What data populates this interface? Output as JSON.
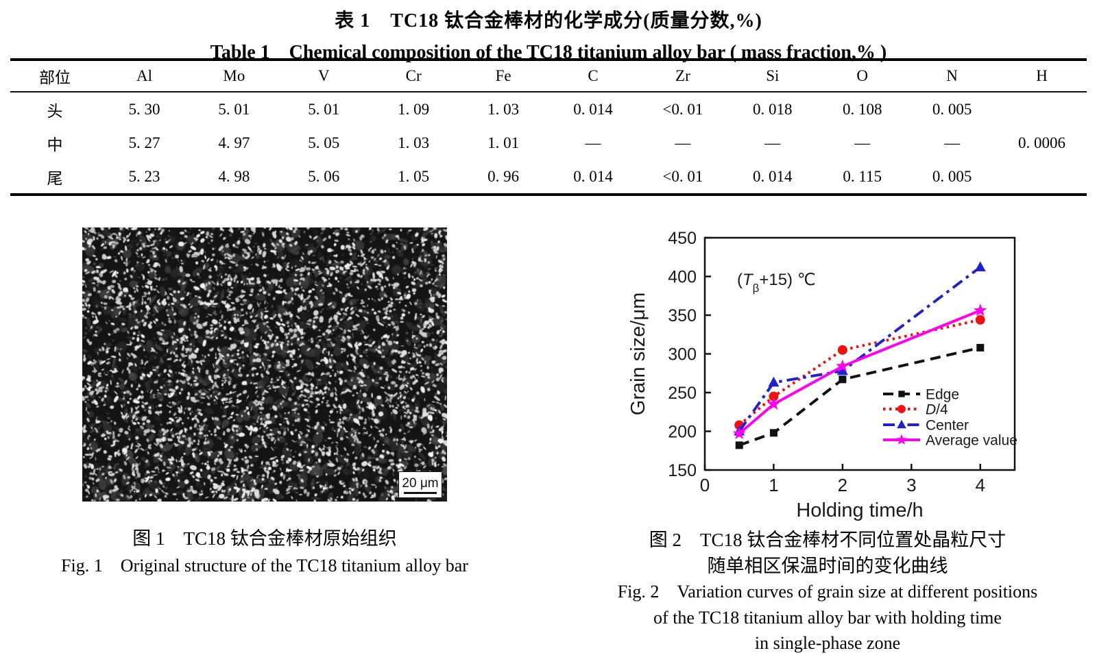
{
  "titles": {
    "table_zh": "表 1　TC18 钛合金棒材的化学成分(质量分数,%)",
    "table_en": "Table 1　Chemical composition of the TC18 titanium alloy bar ( mass fraction,% )"
  },
  "table": {
    "columns": [
      "部位",
      "Al",
      "Mo",
      "V",
      "Cr",
      "Fe",
      "C",
      "Zr",
      "Si",
      "O",
      "N",
      "H"
    ],
    "rows": [
      [
        "头",
        "5. 30",
        "5. 01",
        "5. 01",
        "1. 09",
        "1. 03",
        "0. 014",
        "<0. 01",
        "0. 018",
        "0. 108",
        "0. 005",
        ""
      ],
      [
        "中",
        "5. 27",
        "4. 97",
        "5. 05",
        "1. 03",
        "1. 01",
        "—",
        "—",
        "—",
        "—",
        "—",
        "0. 0006"
      ],
      [
        "尾",
        "5. 23",
        "4. 98",
        "5. 06",
        "1. 05",
        "0. 96",
        "0. 014",
        "<0. 01",
        "0. 014",
        "0. 115",
        "0. 005",
        ""
      ]
    ]
  },
  "figure1": {
    "scale_label": "20 μm",
    "caption_zh": "图 1　TC18 钛合金棒材原始组织",
    "caption_en": "Fig. 1　Original structure of the TC18 titanium alloy bar"
  },
  "figure2": {
    "caption_zh_line1": "图 2　TC18 钛合金棒材不同位置处晶粒尺寸",
    "caption_zh_line2": "随单相区保温时间的变化曲线",
    "caption_en_line1": "Fig. 2　Variation curves of grain size at different positions",
    "caption_en_line2": "of the TC18 titanium alloy bar with holding time",
    "caption_en_line3": "in single-phase zone"
  },
  "chart_data": {
    "type": "line",
    "title": "",
    "xlabel": "Holding time/h",
    "ylabel": "Grain size/μm",
    "annotation": "(Tβ+15) ℃",
    "annotation_parts": [
      [
        "(",
        "n"
      ],
      [
        "T",
        "i"
      ],
      [
        "β",
        "s"
      ],
      [
        "+15) ℃",
        "n"
      ]
    ],
    "x": [
      0.5,
      1,
      2,
      4
    ],
    "xlim": [
      0,
      4.5
    ],
    "ylim": [
      150,
      450
    ],
    "xticks": [
      "0",
      "1",
      "2",
      "3",
      "4"
    ],
    "yticks": [
      "150",
      "200",
      "250",
      "300",
      "350",
      "400",
      "450"
    ],
    "grid": false,
    "legend_position": "inside lower right",
    "series": [
      {
        "name": "Edge",
        "color": "#111111",
        "line": "dashed",
        "marker": "square",
        "values": [
          182,
          198,
          267,
          308
        ]
      },
      {
        "name": "D/4",
        "name_parts": [
          [
            "D",
            "i"
          ],
          [
            "/4",
            "n"
          ]
        ],
        "color": "#ee1111",
        "line": "dotted",
        "marker": "circle",
        "values": [
          208,
          245,
          305,
          344
        ]
      },
      {
        "name": "Center",
        "color": "#2222cc",
        "line": "dashdot",
        "marker": "triangle",
        "values": [
          200,
          263,
          278,
          412
        ]
      },
      {
        "name": "Average value",
        "color": "#ff00f0",
        "line": "solid",
        "marker": "star",
        "values": [
          197,
          235,
          284,
          356
        ]
      }
    ]
  }
}
